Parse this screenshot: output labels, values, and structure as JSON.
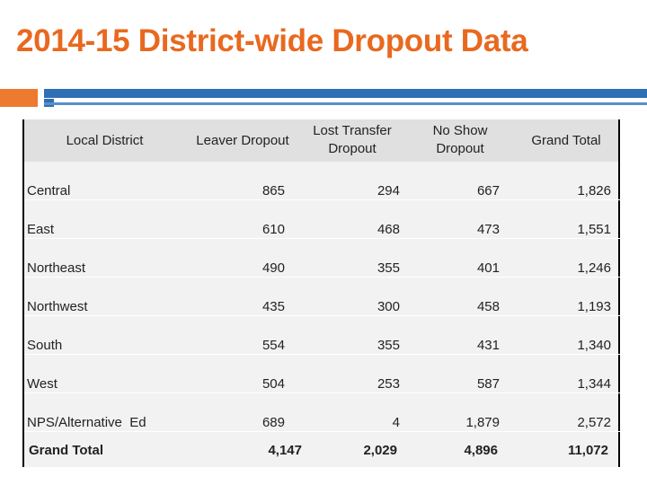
{
  "title": "2014-15 District-wide Dropout Data",
  "table": {
    "headers": [
      "Local District",
      "Leaver Dropout",
      "Lost Transfer Dropout",
      "No Show Dropout",
      "Grand Total"
    ],
    "header_lines": {
      "lost_transfer": [
        "Lost Transfer",
        "Dropout"
      ],
      "no_show": [
        "No Show",
        "Dropout"
      ]
    },
    "rows": [
      {
        "district": "Central",
        "leaver": "865",
        "lost_transfer": "294",
        "no_show": "667",
        "total": "1,826"
      },
      {
        "district": "East",
        "leaver": "610",
        "lost_transfer": "468",
        "no_show": "473",
        "total": "1,551"
      },
      {
        "district": "Northeast",
        "leaver": "490",
        "lost_transfer": "355",
        "no_show": "401",
        "total": "1,246"
      },
      {
        "district": "Northwest",
        "leaver": "435",
        "lost_transfer": "300",
        "no_show": "458",
        "total": "1,193"
      },
      {
        "district": "South",
        "leaver": "554",
        "lost_transfer": "355",
        "no_show": "431",
        "total": "1,340"
      },
      {
        "district": "West",
        "leaver": "504",
        "lost_transfer": "253",
        "no_show": "587",
        "total": "1,344"
      },
      {
        "district": "NPS/Alternative  Ed",
        "leaver": "689",
        "lost_transfer": "4",
        "no_show": "1,879",
        "total": "2,572"
      }
    ],
    "grand_total": {
      "district": "Grand Total",
      "leaver": "4,147",
      "lost_transfer": "2,029",
      "no_show": "4,896",
      "total": "11,072"
    }
  },
  "colors": {
    "title": "#e8691f",
    "accent_orange": "#ec7a2f",
    "accent_blue": "#2f6fb3"
  }
}
